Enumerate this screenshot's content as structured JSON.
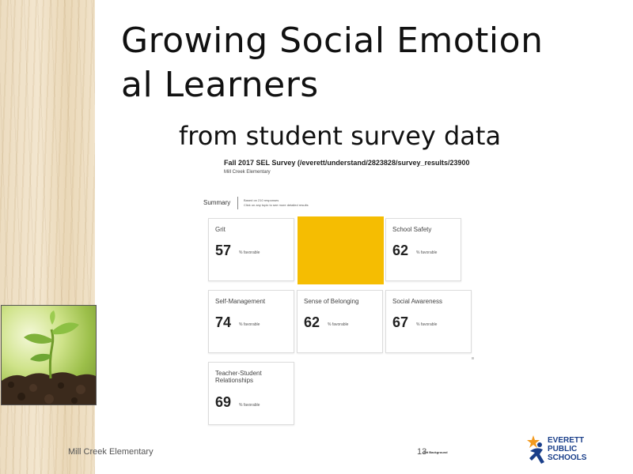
{
  "slide": {
    "title_line1": "Growing  Social Emotion",
    "title_line2": "al Learners",
    "subtitle": "from student survey data"
  },
  "survey": {
    "heading": "Fall 2017 SEL Survey (/everett/understand/2823828/survey_results/23900",
    "school": "Mill Creek Elementary",
    "summary_label": "Summary",
    "summary_note_line1": "Based on 210 responses",
    "summary_note_line2": "Click on any topic to see more detailed results",
    "unit": "% favorable",
    "cards": [
      {
        "label": "Grit",
        "value": "57"
      },
      {
        "label": "School Safety",
        "value": "62"
      },
      {
        "label": "Self-Management",
        "value": "74"
      },
      {
        "label": "Sense of Belonging",
        "value": "62"
      },
      {
        "label": "Social Awareness",
        "value": "67"
      },
      {
        "label": "Teacher-Student Relationships",
        "value": "69"
      }
    ],
    "highlight_color": "#f5bd02"
  },
  "footer": {
    "school": "Mill Creek Elementary",
    "page_number": "13",
    "fragment": "Grit Background"
  },
  "logo": {
    "line1": "EVERETT",
    "line2": "PUBLIC",
    "line3": "SCHOOLS",
    "icon": "runner-star-icon"
  }
}
